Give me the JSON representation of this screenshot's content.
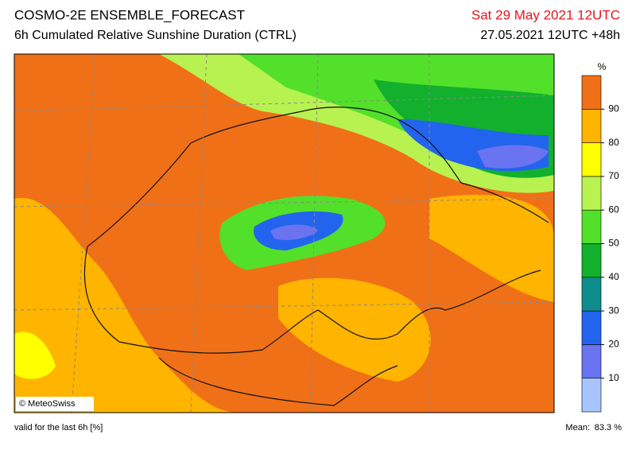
{
  "header": {
    "title": "COSMO-2E ENSEMBLE_FORECAST",
    "subtitle": "6h Cumulated Relative Sunshine Duration (CTRL)",
    "valid_time": "Sat 29 May 2021 12UTC",
    "run": "27.05.2021 12UTC +48h"
  },
  "legend": {
    "unit": "%",
    "ticks": [
      10,
      20,
      30,
      40,
      50,
      60,
      70,
      80,
      90
    ],
    "colors": [
      "#a8c4ff",
      "#6a74f0",
      "#2264ee",
      "#0e8c8c",
      "#12b02c",
      "#52e02a",
      "#b8f250",
      "#ffff00",
      "#ffb400",
      "#f07018"
    ]
  },
  "credit": "© MeteoSwiss",
  "footer": {
    "validity": "valid for the last 6h [%]",
    "mean_label": "Mean:",
    "mean_value": "83.3 %"
  }
}
